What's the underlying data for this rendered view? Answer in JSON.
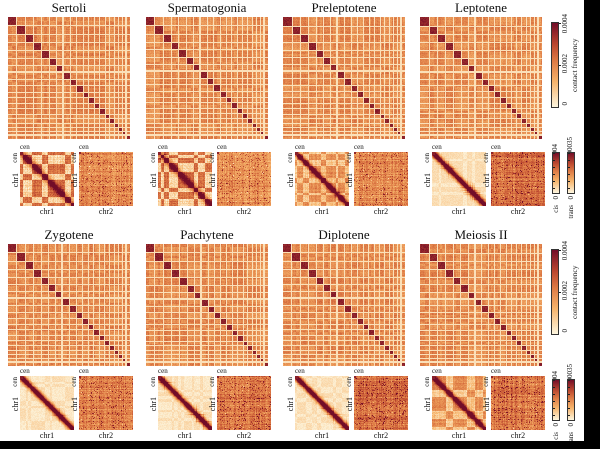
{
  "figure": {
    "palette": {
      "low": "#FDF6DF",
      "mid_low": "#F6B46C",
      "mid": "#DD7A45",
      "mid_high": "#BA462F",
      "high": "#720D28"
    },
    "axis_labels": {
      "cen": "cen",
      "chr1": "chr1",
      "chr2": "chr2"
    },
    "colorbars": {
      "contact": {
        "label": "contact frequency",
        "ticks": [
          "0",
          "0.0002",
          "0.0004"
        ]
      },
      "cis": {
        "label": "cis",
        "min": "0",
        "max": "0.004"
      },
      "trans": {
        "label": "trans",
        "min": "0",
        "max": "0.00035"
      }
    },
    "rows": [
      {
        "panels": [
          {
            "title": "Sertoli",
            "cis_pattern": "blocky",
            "trans_darkness": 0.46
          },
          {
            "title": "Spermatogonia",
            "cis_pattern": "blocky",
            "trans_darkness": 0.47
          },
          {
            "title": "Preleptotene",
            "cis_pattern": "fuzzy",
            "trans_darkness": 0.48
          },
          {
            "title": "Leptotene",
            "cis_pattern": "diagonal",
            "trans_darkness": 0.58
          }
        ]
      },
      {
        "panels": [
          {
            "title": "Zygotene",
            "cis_pattern": "diagonal",
            "trans_darkness": 0.52
          },
          {
            "title": "Pachytene",
            "cis_pattern": "diagonal",
            "trans_darkness": 0.55
          },
          {
            "title": "Diplotene",
            "cis_pattern": "diagonal",
            "trans_darkness": 0.6
          },
          {
            "title": "Meiosis II",
            "cis_pattern": "fuzzy",
            "trans_darkness": 0.55
          }
        ]
      }
    ]
  },
  "chart_data": [
    {
      "type": "heatmap",
      "title": "Sertoli",
      "maps": {
        "genome_wide": {
          "axes": "all chromosomes x all chromosomes",
          "pattern": "orange inter-chromosomal background with ~20 dark intra-chromosomal blocks along diagonal, light boundary gridlines, dark block at bottom-right",
          "colorbar": "contact frequency",
          "range": [
            0,
            0.0004
          ]
        },
        "cis": {
          "x": "chr1",
          "y": "chr1",
          "range": [
            0,
            0.004
          ],
          "pattern": "strong compartment checkerboard with dark diagonal, cen at top-left"
        },
        "trans": {
          "x": "chr2",
          "y": "chr1",
          "range": [
            0,
            0.00035
          ],
          "pattern": "light-orange speckled trans contacts"
        }
      }
    },
    {
      "type": "heatmap",
      "title": "Spermatogonia",
      "maps": {
        "genome_wide": {
          "axes": "all chromosomes x all chromosomes",
          "pattern": "chromosome-territory blocks on diagonal over plaid orange background",
          "colorbar": "contact frequency",
          "range": [
            0,
            0.0004
          ]
        },
        "cis": {
          "x": "chr1",
          "y": "chr1",
          "range": [
            0,
            0.004
          ],
          "pattern": "compartment checkerboard with dark diagonal"
        },
        "trans": {
          "x": "chr2",
          "y": "chr1",
          "range": [
            0,
            0.00035
          ],
          "pattern": "orange speckled trans contacts"
        }
      }
    },
    {
      "type": "heatmap",
      "title": "Preleptotene",
      "maps": {
        "genome_wide": {
          "axes": "all chromosomes x all chromosomes",
          "pattern": "chromosome-territory blocks on diagonal over plaid orange background",
          "colorbar": "contact frequency",
          "range": [
            0,
            0.0004
          ]
        },
        "cis": {
          "x": "chr1",
          "y": "chr1",
          "range": [
            0,
            0.004
          ],
          "pattern": "fuzzy diagonal with weakened compartments"
        },
        "trans": {
          "x": "chr2",
          "y": "chr1",
          "range": [
            0,
            0.00035
          ],
          "pattern": "orange speckled trans contacts"
        }
      }
    },
    {
      "type": "heatmap",
      "title": "Leptotene",
      "maps": {
        "genome_wide": {
          "axes": "all chromosomes x all chromosomes",
          "pattern": "chromosome-territory blocks on diagonal over plaid orange background",
          "colorbar": "contact frequency",
          "range": [
            0,
            0.0004
          ]
        },
        "cis": {
          "x": "chr1",
          "y": "chr1",
          "range": [
            0,
            0.004
          ],
          "pattern": "sharp dark diagonal band on cream background, compartments lost"
        },
        "trans": {
          "x": "chr2",
          "y": "chr1",
          "range": [
            0,
            0.00035
          ],
          "pattern": "darker red speckled trans contacts"
        }
      }
    },
    {
      "type": "heatmap",
      "title": "Zygotene",
      "maps": {
        "genome_wide": {
          "axes": "all chromosomes x all chromosomes",
          "pattern": "chromosome-territory blocks on diagonal over plaid orange background",
          "colorbar": "contact frequency",
          "range": [
            0,
            0.0004
          ]
        },
        "cis": {
          "x": "chr1",
          "y": "chr1",
          "range": [
            0,
            0.004
          ],
          "pattern": "sharp dark diagonal band on cream background"
        },
        "trans": {
          "x": "chr2",
          "y": "chr1",
          "range": [
            0,
            0.00035
          ],
          "pattern": "red-orange speckled trans contacts"
        }
      }
    },
    {
      "type": "heatmap",
      "title": "Pachytene",
      "maps": {
        "genome_wide": {
          "axes": "all chromosomes x all chromosomes",
          "pattern": "chromosome-territory blocks on diagonal over plaid orange background",
          "colorbar": "contact frequency",
          "range": [
            0,
            0.0004
          ]
        },
        "cis": {
          "x": "chr1",
          "y": "chr1",
          "range": [
            0,
            0.004
          ],
          "pattern": "sharp dark diagonal band on cream background"
        },
        "trans": {
          "x": "chr2",
          "y": "chr1",
          "range": [
            0,
            0.00035
          ],
          "pattern": "red speckled trans contacts with dense center"
        }
      }
    },
    {
      "type": "heatmap",
      "title": "Diplotene",
      "maps": {
        "genome_wide": {
          "axes": "all chromosomes x all chromosomes",
          "pattern": "chromosome-territory blocks on diagonal over plaid orange background",
          "colorbar": "contact frequency",
          "range": [
            0,
            0.0004
          ]
        },
        "cis": {
          "x": "chr1",
          "y": "chr1",
          "range": [
            0,
            0.004
          ],
          "pattern": "sharp dark diagonal band on cream background"
        },
        "trans": {
          "x": "chr2",
          "y": "chr1",
          "range": [
            0,
            0.00035
          ],
          "pattern": "dark red speckled trans contacts"
        }
      }
    },
    {
      "type": "heatmap",
      "title": "Meiosis II",
      "maps": {
        "genome_wide": {
          "axes": "all chromosomes x all chromosomes",
          "pattern": "chromosome-territory blocks on diagonal over plaid orange background",
          "colorbar": "contact frequency",
          "range": [
            0,
            0.0004
          ]
        },
        "cis": {
          "x": "chr1",
          "y": "chr1",
          "range": [
            0,
            0.004
          ],
          "pattern": "re-emerging compartment checkerboard with dark diagonal"
        },
        "trans": {
          "x": "chr2",
          "y": "chr1",
          "range": [
            0,
            0.00035
          ],
          "pattern": "dark red speckled trans contacts"
        }
      }
    }
  ]
}
